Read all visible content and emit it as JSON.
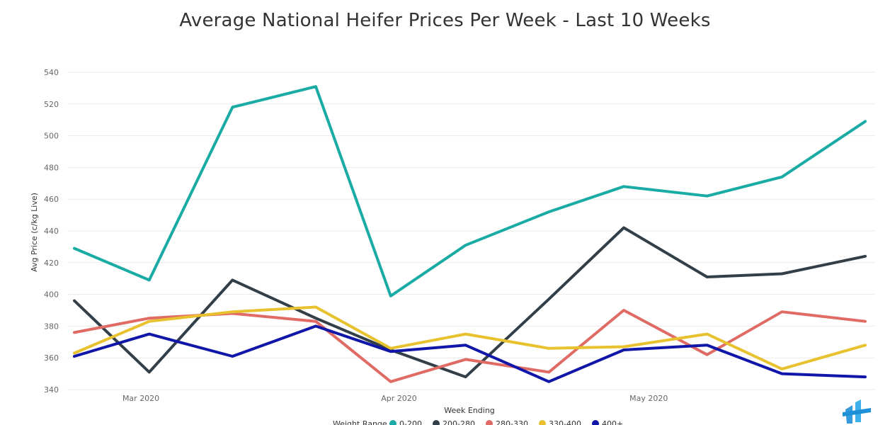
{
  "chart_data": {
    "type": "line",
    "title": "Average National Heifer Prices Per Week - Last 10 Weeks",
    "xlabel": "Week Ending",
    "ylabel": "Avg Price (c/kg Live)",
    "ylim": [
      340,
      540
    ],
    "yticks": [
      340,
      360,
      380,
      400,
      420,
      440,
      460,
      480,
      500,
      520,
      540
    ],
    "xtick_labels": [
      "Mar 2020",
      "Apr 2020",
      "May 2020"
    ],
    "x": [
      "2020-02-22",
      "2020-03-02",
      "2020-03-12",
      "2020-03-22",
      "2020-03-31",
      "2020-04-09",
      "2020-04-19",
      "2020-04-28",
      "2020-05-08",
      "2020-05-17",
      "2020-05-27"
    ],
    "grid": true,
    "legend_position": "bottom",
    "legend_title": "Weight Range",
    "series": [
      {
        "name": "0-200",
        "color": "#1aaba5",
        "values": [
          429,
          409,
          518,
          531,
          399,
          431,
          452,
          468,
          462,
          474,
          509
        ]
      },
      {
        "name": "200-280",
        "color": "#333f48",
        "values": [
          396,
          351,
          409,
          385,
          365,
          348,
          397,
          442,
          411,
          413,
          424
        ]
      },
      {
        "name": "280-330",
        "color": "#e06b64",
        "values": [
          376,
          385,
          388,
          383,
          345,
          359,
          351,
          390,
          362,
          389,
          383
        ]
      },
      {
        "name": "330-400",
        "color": "#e8c22e",
        "values": [
          363,
          383,
          389,
          392,
          366,
          375,
          366,
          367,
          375,
          353,
          368
        ]
      },
      {
        "name": "400+",
        "color": "#1016a8",
        "values": [
          361,
          375,
          361,
          380,
          364,
          368,
          345,
          365,
          368,
          350,
          348
        ]
      }
    ]
  }
}
